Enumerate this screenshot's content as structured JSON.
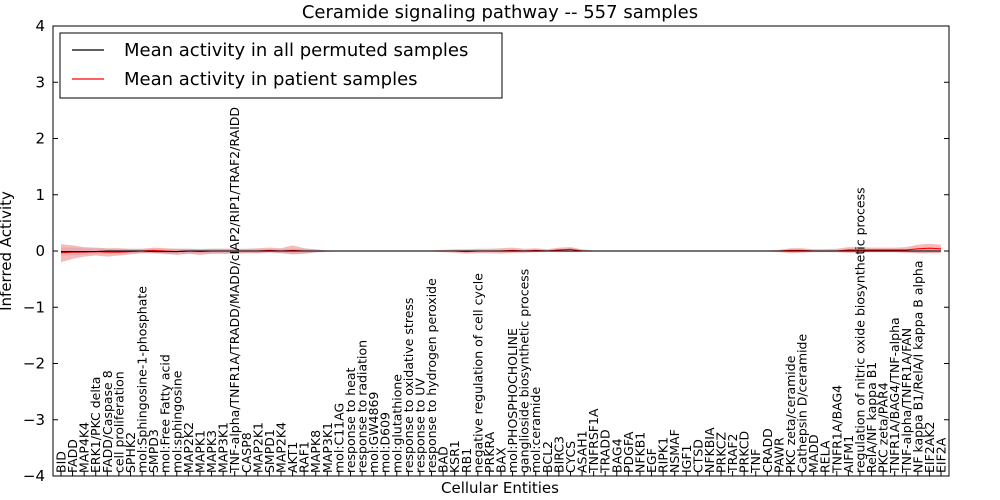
{
  "chart_data": {
    "type": "line",
    "title": "Ceramide signaling pathway -- 557 samples",
    "xlabel": "Cellular Entities",
    "ylabel": "Inferred Activity",
    "ylim": [
      -4,
      4
    ],
    "yticks": [
      -4,
      -3,
      -2,
      -1,
      0,
      1,
      2,
      3,
      4
    ],
    "ytick_labels": [
      "−4",
      "−3",
      "−2",
      "−1",
      "0",
      "1",
      "2",
      "3",
      "4"
    ],
    "legend_position": "top-left",
    "categories": [
      "BID",
      "FADD",
      "MAP4K4",
      "ERK1/PKC delta",
      "FADD/Caspase 8",
      "cell proliferation",
      "SPHK2",
      "mol:Sphingosine-1-phosphate",
      "SMPD3",
      "mol:Free Fatty acid",
      "mol:sphingosine",
      "MAP2K2",
      "MAPK1",
      "MAPK3",
      "MAP3K1",
      "TNF-alpha/TNFR1A/TRADD/MADD/cIAP2/RIP1/TRAF2/RAIDD",
      "CASP8",
      "MAP2K1",
      "SMPD1",
      "MAP2K4",
      "AKT1",
      "RAF1",
      "MAPK8",
      "MAP3K1",
      "mol:C11AG",
      "response to heat",
      "response to radiation",
      "mol:GW4869",
      "mol:D609",
      "mol:glutathione",
      "response to oxidative stress",
      "response to UV",
      "response to hydrogen peroxide",
      "BAD",
      "KSR1",
      "RB1",
      "negative regulation of cell cycle",
      "PRKRA",
      "BAX",
      "mol:PHOSPHOCHOLINE",
      "ganglioside biosynthetic process",
      "mol:ceramide",
      "BCL2",
      "BIRC3",
      "CYCS",
      "ASAH1",
      "TNFRSF1A",
      "TRADD",
      "BAG4",
      "PDGFA",
      "NFKB1",
      "EGF",
      "RIPK1",
      "NSMAF",
      "IGF1",
      "CTSD",
      "NFKBIA",
      "PRKCZ",
      "TRAF2",
      "PRKCD",
      "TNF",
      "CRADD",
      "PAWR",
      "PKC zeta/ceramide",
      "Cathepsin D/ceramide",
      "MADD",
      "RELA",
      "TNFR1A/BAG4",
      "AIFM1",
      "regulation of nitric oxide biosynthetic process",
      "RelA/NF kappa B1",
      "PKC zeta/PAR4",
      "TNFR1A/BAG4/TNF-alpha",
      "TNF-alpha/TNFR1A/FAN",
      "NF kappa B1/RelA/I kappa B alpha",
      "EIF2AK2",
      "EIF2A"
    ],
    "series": [
      {
        "name": "Mean activity in all permuted samples",
        "color": "#000000",
        "values": [
          -0.01,
          -0.01,
          -0.01,
          -0.01,
          0,
          0,
          0,
          0,
          -0.01,
          -0.01,
          -0.01,
          0,
          0,
          0,
          0,
          0,
          0,
          0,
          0,
          0,
          0,
          0,
          0,
          0,
          0,
          0,
          0,
          0,
          0,
          0,
          0,
          0,
          0,
          0,
          0,
          0,
          0,
          0,
          0,
          0,
          0,
          0,
          0,
          0,
          0,
          0,
          0,
          0,
          0,
          0,
          0,
          0,
          0,
          0,
          0,
          0,
          0,
          0,
          0,
          0,
          0,
          0,
          0,
          0,
          0,
          0,
          0,
          0,
          0,
          0,
          0,
          0,
          0,
          0,
          0,
          0,
          0
        ],
        "band_lower": [
          -0.08,
          -0.08,
          -0.07,
          -0.06,
          -0.05,
          -0.05,
          -0.04,
          -0.04,
          -0.05,
          -0.06,
          -0.06,
          -0.05,
          -0.05,
          -0.05,
          -0.05,
          -0.05,
          -0.04,
          -0.04,
          -0.04,
          -0.04,
          -0.05,
          -0.05,
          -0.03,
          -0.02,
          -0.01,
          -0.01,
          -0.01,
          -0.01,
          -0.01,
          -0.01,
          -0.01,
          -0.01,
          -0.01,
          -0.01,
          -0.01,
          -0.01,
          -0.01,
          -0.01,
          -0.02,
          -0.02,
          -0.02,
          -0.02,
          -0.02,
          -0.02,
          -0.02,
          -0.02,
          -0.01,
          -0.01,
          -0.01,
          -0.01,
          -0.01,
          -0.01,
          -0.01,
          -0.01,
          -0.01,
          -0.01,
          -0.01,
          -0.01,
          -0.01,
          -0.01,
          -0.01,
          -0.01,
          -0.01,
          -0.02,
          -0.02,
          -0.02,
          -0.02,
          -0.02,
          -0.02,
          -0.02,
          -0.02,
          -0.02,
          -0.02,
          -0.02,
          -0.03,
          -0.03,
          -0.02
        ],
        "band_upper": [
          0.06,
          0.06,
          0.05,
          0.05,
          0.04,
          0.04,
          0.03,
          0.03,
          0.04,
          0.04,
          0.04,
          0.04,
          0.04,
          0.04,
          0.04,
          0.04,
          0.03,
          0.03,
          0.03,
          0.03,
          0.04,
          0.04,
          0.02,
          0.01,
          0.01,
          0.01,
          0.01,
          0.01,
          0.01,
          0.01,
          0.01,
          0.01,
          0.01,
          0.01,
          0.01,
          0.01,
          0.01,
          0.01,
          0.02,
          0.02,
          0.02,
          0.02,
          0.02,
          0.02,
          0.02,
          0.02,
          0.01,
          0.01,
          0.01,
          0.01,
          0.01,
          0.01,
          0.01,
          0.01,
          0.01,
          0.01,
          0.01,
          0.01,
          0.01,
          0.01,
          0.01,
          0.01,
          0.01,
          0.02,
          0.02,
          0.02,
          0.02,
          0.02,
          0.02,
          0.02,
          0.02,
          0.02,
          0.02,
          0.02,
          0.03,
          0.03,
          0.02
        ]
      },
      {
        "name": "Mean activity in patient samples",
        "color": "#ff0000",
        "values": [
          -0.03,
          -0.02,
          -0.02,
          -0.01,
          -0.02,
          -0.02,
          -0.01,
          0,
          0.01,
          0,
          -0.01,
          0,
          -0.01,
          0,
          0,
          0,
          0,
          0,
          0.01,
          0,
          0.01,
          0,
          0,
          0,
          0,
          0,
          0,
          0,
          0,
          0,
          0,
          0,
          0,
          0,
          0,
          -0.01,
          0,
          0,
          0,
          0.01,
          0,
          0.01,
          0,
          0.02,
          0.03,
          0,
          0,
          0,
          0,
          0,
          0,
          0,
          0,
          0,
          0,
          0,
          0,
          0,
          0,
          0,
          0,
          0,
          0,
          0.01,
          0.01,
          0,
          0,
          0,
          0.02,
          0.02,
          0.02,
          0.02,
          0.02,
          0.02,
          0.04,
          0.05,
          0.04
        ],
        "band_lower": [
          -0.2,
          -0.14,
          -0.1,
          -0.08,
          -0.1,
          -0.08,
          -0.06,
          -0.04,
          -0.03,
          -0.05,
          -0.07,
          -0.05,
          -0.07,
          -0.05,
          -0.05,
          -0.05,
          -0.04,
          -0.04,
          -0.02,
          -0.04,
          -0.06,
          -0.05,
          -0.02,
          -0.01,
          -0.01,
          -0.01,
          -0.01,
          -0.01,
          -0.01,
          -0.01,
          -0.01,
          -0.01,
          -0.01,
          -0.02,
          -0.03,
          -0.05,
          -0.04,
          -0.04,
          -0.05,
          -0.03,
          -0.03,
          -0.02,
          -0.01,
          -0.01,
          -0.02,
          -0.01,
          -0.01,
          -0.01,
          -0.01,
          -0.01,
          -0.01,
          -0.01,
          -0.01,
          -0.01,
          -0.01,
          -0.01,
          -0.01,
          -0.01,
          -0.01,
          -0.01,
          -0.01,
          -0.01,
          -0.02,
          -0.04,
          -0.03,
          -0.02,
          -0.02,
          -0.02,
          -0.03,
          -0.03,
          -0.02,
          -0.02,
          -0.02,
          -0.03,
          -0.04,
          -0.04,
          -0.04
        ],
        "band_upper": [
          0.12,
          0.1,
          0.07,
          0.06,
          0.05,
          0.05,
          0.04,
          0.04,
          0.06,
          0.05,
          0.04,
          0.04,
          0.03,
          0.04,
          0.04,
          0.04,
          0.04,
          0.05,
          0.06,
          0.05,
          0.1,
          0.05,
          0.03,
          0.01,
          0.01,
          0.01,
          0.01,
          0.01,
          0.01,
          0.01,
          0.01,
          0.01,
          0.01,
          0.02,
          0.03,
          0.03,
          0.04,
          0.04,
          0.05,
          0.06,
          0.04,
          0.05,
          0.03,
          0.06,
          0.07,
          0.03,
          0.01,
          0.01,
          0.01,
          0.01,
          0.01,
          0.01,
          0.01,
          0.01,
          0.01,
          0.01,
          0.01,
          0.01,
          0.01,
          0.01,
          0.01,
          0.01,
          0.02,
          0.05,
          0.05,
          0.03,
          0.03,
          0.04,
          0.07,
          0.07,
          0.06,
          0.06,
          0.06,
          0.07,
          0.11,
          0.13,
          0.11
        ]
      }
    ]
  }
}
